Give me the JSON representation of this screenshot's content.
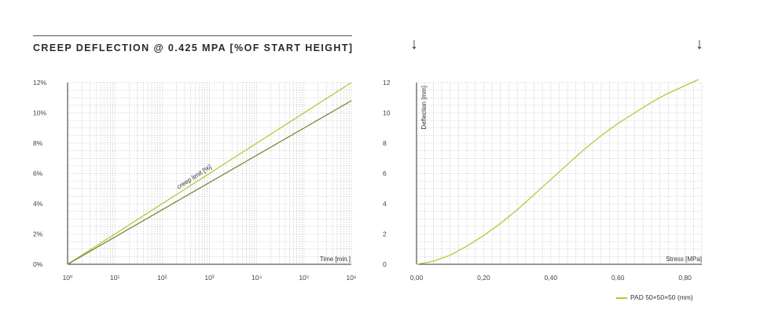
{
  "header": {
    "title": "CREEP DEFLECTION @ 0.425 MPA [%OF START HEIGHT]",
    "arrow_left": "↓",
    "arrow_right": "↓"
  },
  "colors": {
    "light_green": "#b1c93a",
    "dark_green": "#6e8f3c",
    "grid": "#bdbdbd",
    "axis": "#333333"
  },
  "chart_data": [
    {
      "type": "line",
      "x_scale": "log",
      "xlim": [
        1,
        1000000
      ],
      "ylim": [
        0,
        12
      ],
      "x_ticks": [
        "10⁰",
        "10¹",
        "10²",
        "10³",
        "10⁴",
        "10⁵",
        "10⁶"
      ],
      "y_ticks": [
        "0%",
        "2%",
        "4%",
        "6%",
        "8%",
        "10%",
        "12%"
      ],
      "xlabel": "Time [min.]",
      "ylabel": "",
      "grid": true,
      "annotations": [
        {
          "text": "creep limit [%]"
        }
      ],
      "series": [
        {
          "x": [
            1,
            1000000
          ],
          "y": [
            0,
            12
          ],
          "color": "#b1c93a"
        },
        {
          "x": [
            1,
            1000000
          ],
          "y": [
            0,
            10.8
          ],
          "color": "#6e8f3c"
        }
      ]
    },
    {
      "type": "line",
      "xlim": [
        0,
        0.85
      ],
      "ylim": [
        0,
        12
      ],
      "x_ticks": [
        "0,00",
        "0,20",
        "0,40",
        "0,60",
        "0,80"
      ],
      "y_ticks": [
        "0",
        "2",
        "4",
        "6",
        "8",
        "10",
        "12"
      ],
      "xlabel": "Stress [MPa]",
      "ylabel": "Deflection [mm]",
      "grid": true,
      "legend": "bottom-right",
      "series": [
        {
          "name": "PAD 50×50×50 (mm)",
          "color": "#b1c93a",
          "x": [
            0,
            0.05,
            0.1,
            0.15,
            0.2,
            0.25,
            0.3,
            0.35,
            0.4,
            0.45,
            0.5,
            0.55,
            0.6,
            0.65,
            0.7,
            0.75,
            0.8,
            0.84
          ],
          "y": [
            0,
            0.2,
            0.6,
            1.2,
            1.9,
            2.7,
            3.6,
            4.6,
            5.6,
            6.6,
            7.6,
            8.5,
            9.3,
            10.0,
            10.7,
            11.3,
            11.8,
            12.2
          ]
        }
      ]
    }
  ]
}
